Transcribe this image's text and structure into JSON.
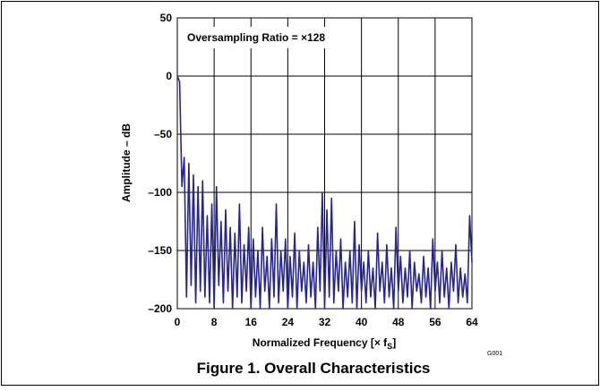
{
  "chart_data": {
    "type": "line",
    "caption": "Figure 1. Overall Characteristics",
    "annotation": "Oversampling Ratio = ×128",
    "figure_id": "G001",
    "y_label": "Amplitude – dB",
    "x_label": "Normalized Frequency [× f",
    "x_label_sub": "S",
    "x_label_end": "]",
    "grid": true,
    "xlim": [
      0,
      64
    ],
    "ylim": [
      -200,
      50
    ],
    "xticks": [
      0,
      8,
      16,
      24,
      32,
      40,
      48,
      56,
      64
    ],
    "yticks": [
      {
        "value": -200,
        "label": "–200"
      },
      {
        "value": -150,
        "label": "–150"
      },
      {
        "value": -100,
        "label": "–100"
      },
      {
        "value": -50,
        "label": "–50"
      },
      0,
      50
    ],
    "x": [
      0,
      0.5,
      1,
      1.5,
      2,
      2.5,
      3,
      3.5,
      4,
      4.5,
      5,
      5.5,
      6,
      6.5,
      7,
      7.5,
      8,
      8.5,
      9,
      9.5,
      10,
      10.5,
      11,
      11.5,
      12,
      12.5,
      13,
      13.5,
      14,
      14.5,
      15,
      15.5,
      16,
      16.5,
      17,
      17.5,
      18,
      18.5,
      19,
      19.5,
      20,
      20.5,
      21,
      21.5,
      22,
      22.5,
      23,
      23.5,
      24,
      24.5,
      25,
      25.5,
      26,
      26.5,
      27,
      27.5,
      28,
      28.5,
      29,
      29.5,
      30,
      30.5,
      31,
      31.5,
      32,
      32.5,
      33,
      33.5,
      34,
      34.5,
      35,
      35.5,
      36,
      36.5,
      37,
      37.5,
      38,
      38.5,
      39,
      39.5,
      40,
      40.5,
      41,
      41.5,
      42,
      42.5,
      43,
      43.5,
      44,
      44.5,
      45,
      45.5,
      46,
      46.5,
      47,
      47.5,
      48,
      48.5,
      49,
      49.5,
      50,
      50.5,
      51,
      51.5,
      52,
      52.5,
      53,
      53.5,
      54,
      54.5,
      55,
      55.5,
      56,
      56.5,
      57,
      57.5,
      58,
      58.5,
      59,
      59.5,
      60,
      60.5,
      61,
      61.5,
      62,
      62.5,
      63,
      63.5,
      64
    ],
    "series": [
      {
        "color": "#26268c",
        "values": [
          0,
          -5,
          -95,
          -70,
          -190,
          -75,
          -180,
          -85,
          -195,
          -95,
          -185,
          -90,
          -190,
          -120,
          -195,
          -110,
          -200,
          -95,
          -180,
          -125,
          -195,
          -115,
          -185,
          -130,
          -200,
          -135,
          -190,
          -110,
          -195,
          -145,
          -185,
          -130,
          -200,
          -140,
          -190,
          -150,
          -200,
          -130,
          -185,
          -155,
          -200,
          -140,
          -190,
          -110,
          -195,
          -150,
          -185,
          -140,
          -200,
          -155,
          -190,
          -135,
          -200,
          -150,
          -185,
          -160,
          -195,
          -145,
          -190,
          -160,
          -200,
          -130,
          -185,
          -100,
          -200,
          -115,
          -190,
          -105,
          -195,
          -150,
          -185,
          -140,
          -200,
          -160,
          -190,
          -150,
          -195,
          -125,
          -200,
          -145,
          -185,
          -160,
          -195,
          -150,
          -190,
          -165,
          -200,
          -135,
          -185,
          -160,
          -195,
          -145,
          -190,
          -165,
          -200,
          -130,
          -185,
          -155,
          -195,
          -165,
          -190,
          -150,
          -200,
          -160,
          -185,
          -170,
          -195,
          -155,
          -190,
          -165,
          -200,
          -140,
          -185,
          -160,
          -195,
          -150,
          -190,
          -165,
          -200,
          -160,
          -185,
          -145,
          -195,
          -165,
          -190,
          -170,
          -195,
          -120,
          -160
        ]
      }
    ]
  }
}
